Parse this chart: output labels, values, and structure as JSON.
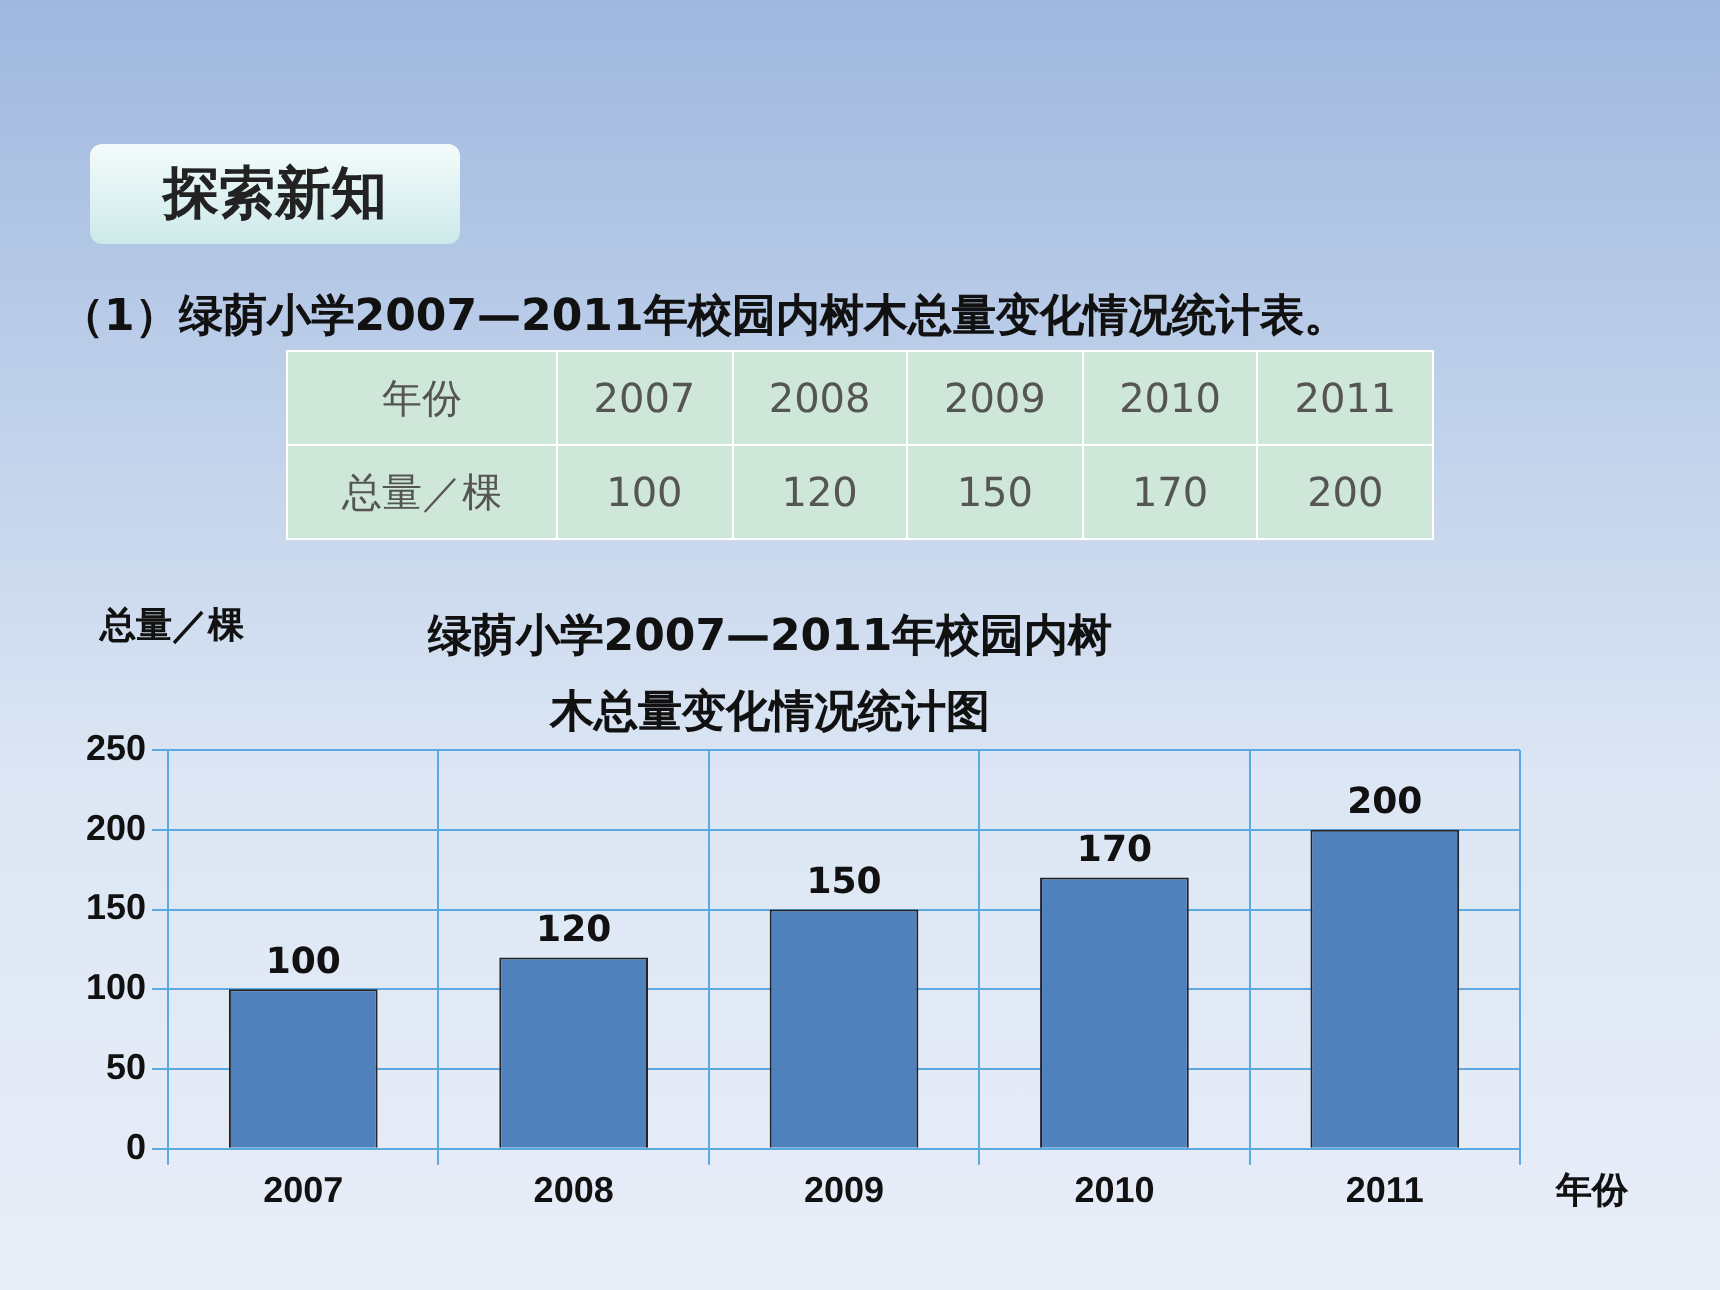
{
  "chart_data": {
    "type": "bar",
    "title": "绿荫小学2007—2011年校园内树木总量变化情况统计图",
    "xlabel": "年份",
    "ylabel": "总量／棵",
    "annotations": [
      "探索新知",
      "（1）绿荫小学2007—2011年校园内树木总量变化情况统计表。",
      "100",
      "120",
      "150",
      "170",
      "200"
    ],
    "categories": [
      "2007",
      "2008",
      "2009",
      "2010",
      "2011"
    ],
    "values": [
      100,
      120,
      150,
      170,
      200
    ],
    "color": "#4f81bd",
    "ylim": [
      0,
      250
    ],
    "yticks": [
      0,
      50,
      100,
      150,
      200,
      250
    ],
    "grid": true,
    "data_labels": true
  }
}
